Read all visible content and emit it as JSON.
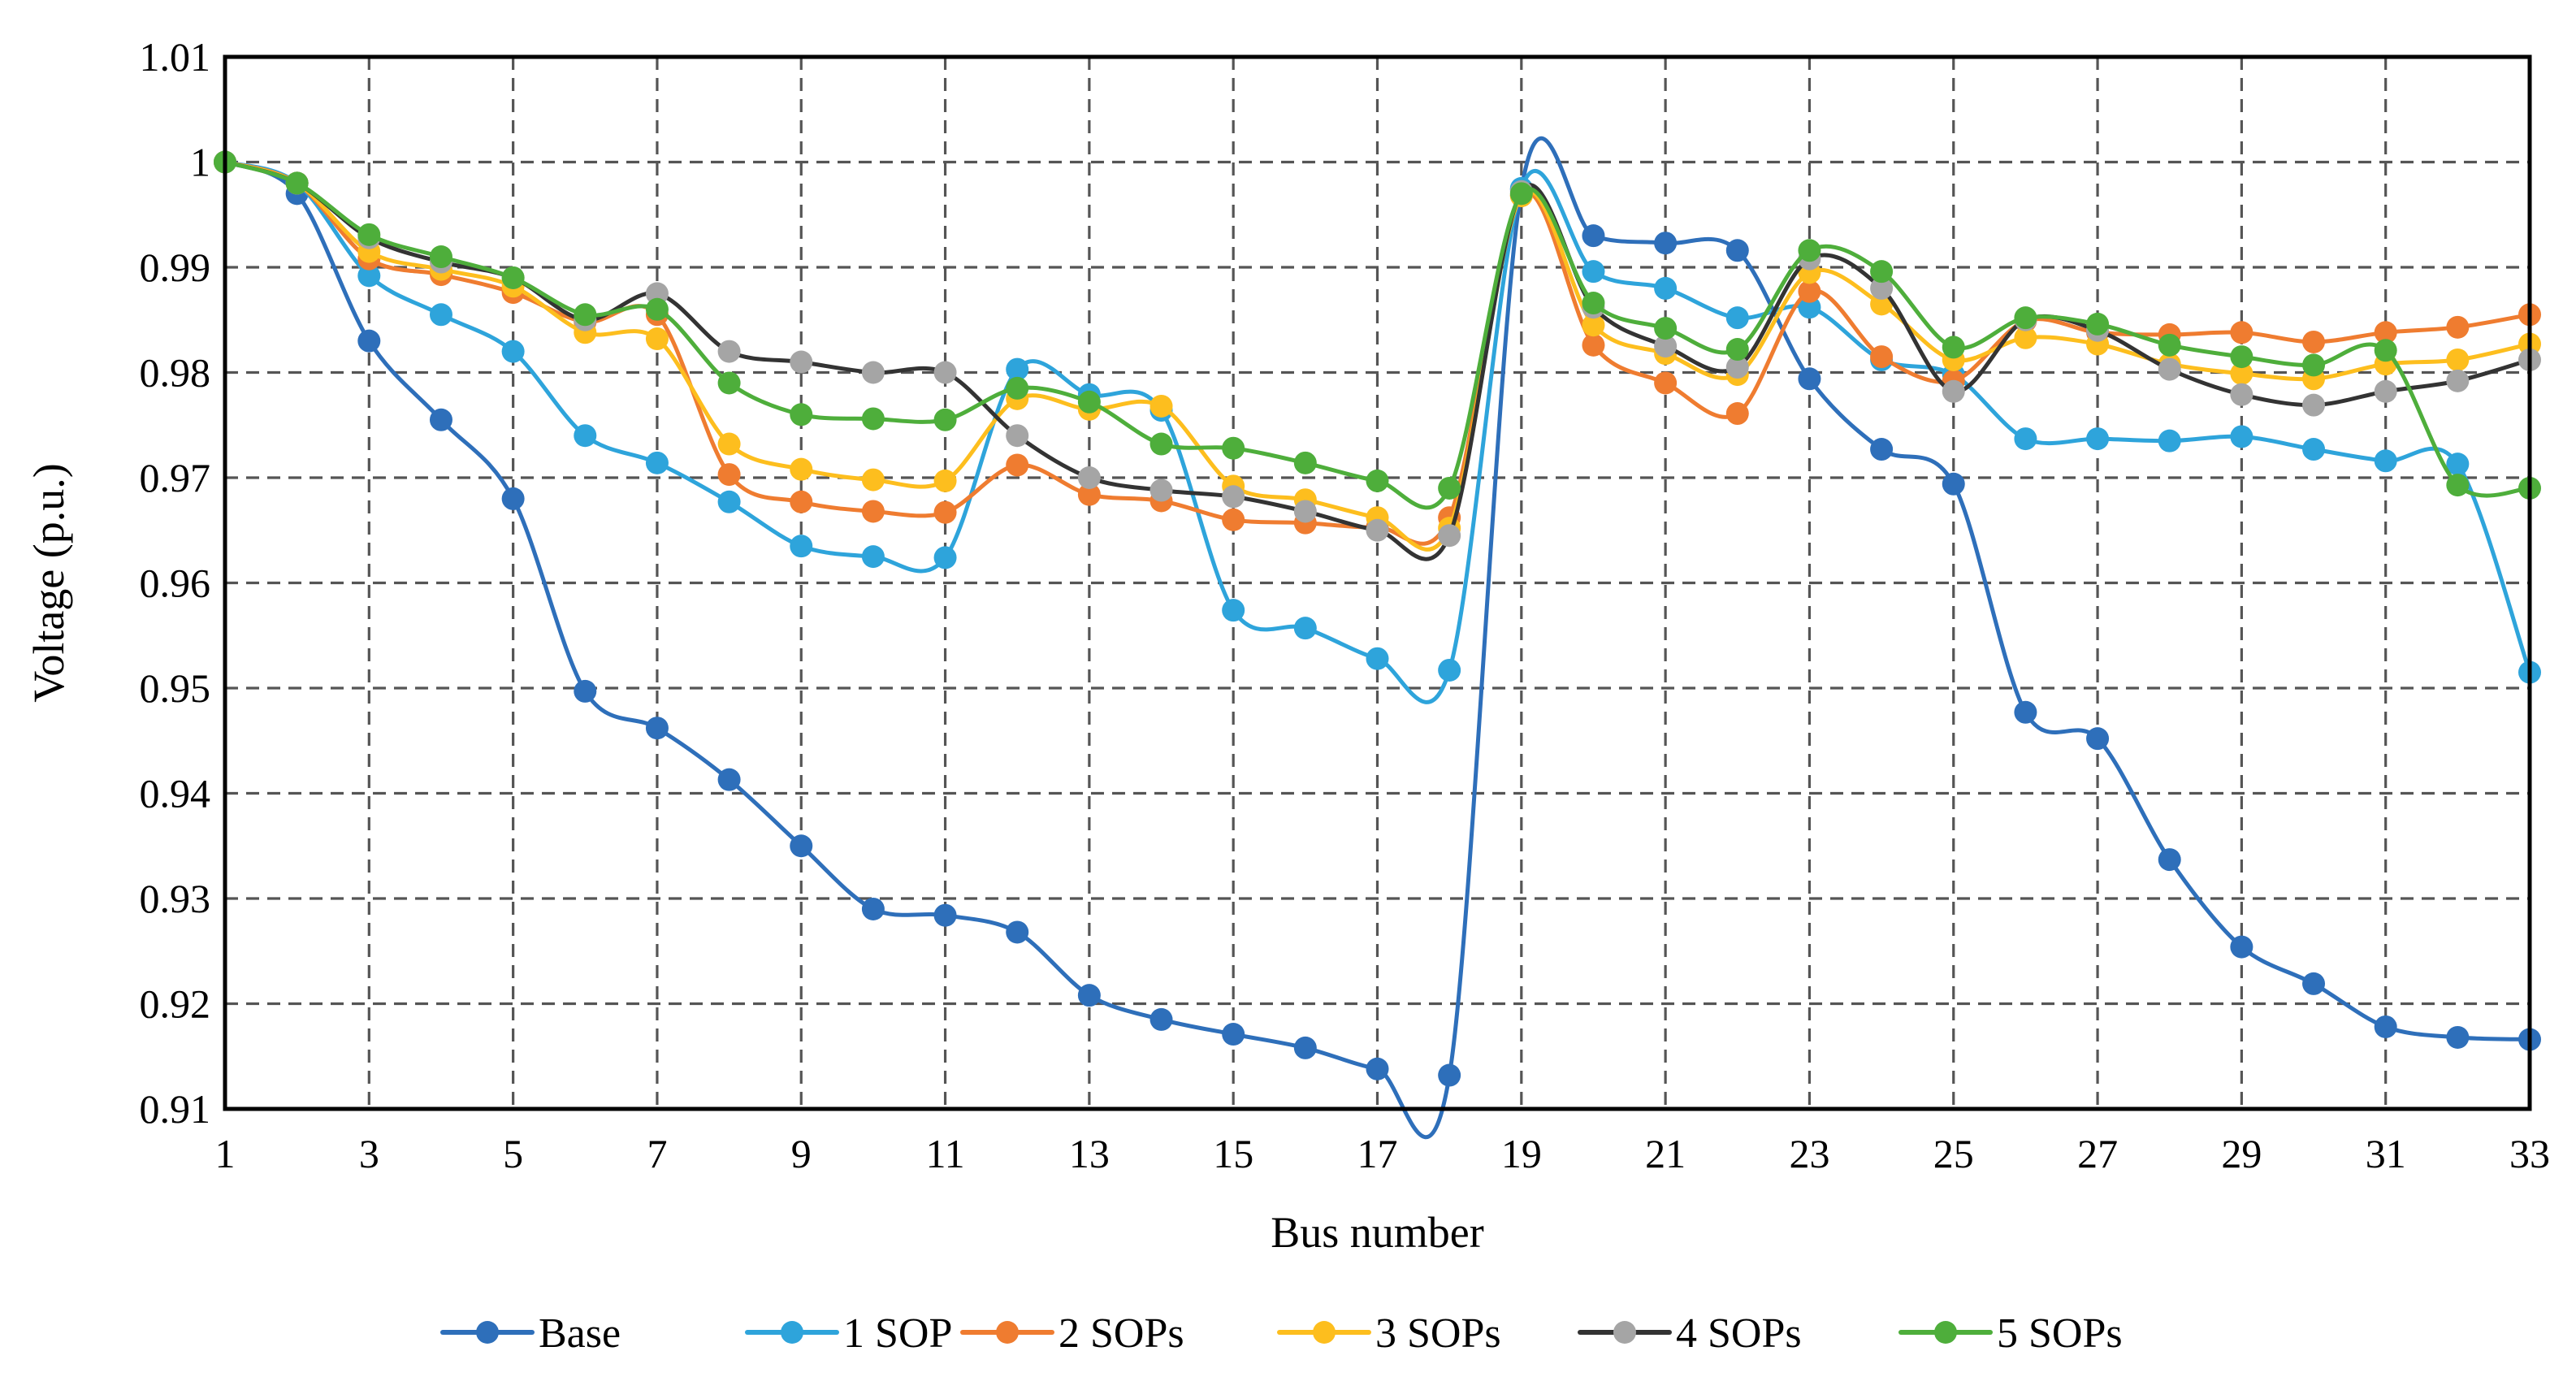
{
  "chart_data": {
    "type": "line",
    "title": "",
    "xlabel": "Bus number",
    "ylabel": "Voltage (p.u.)",
    "x": [
      1,
      2,
      3,
      4,
      5,
      6,
      7,
      8,
      9,
      10,
      11,
      12,
      13,
      14,
      15,
      16,
      17,
      18,
      19,
      20,
      21,
      22,
      23,
      24,
      25,
      26,
      27,
      28,
      29,
      30,
      31,
      32,
      33
    ],
    "xlim": [
      1,
      33
    ],
    "ylim": [
      0.91,
      1.01
    ],
    "xticks": [
      "1",
      "3",
      "5",
      "7",
      "9",
      "11",
      "13",
      "15",
      "17",
      "19",
      "21",
      "23",
      "25",
      "27",
      "29",
      "31",
      "33"
    ],
    "yticks": [
      "0.91",
      "0.92",
      "0.93",
      "0.94",
      "0.95",
      "0.96",
      "0.97",
      "0.98",
      "0.99",
      "1",
      "1.01"
    ],
    "grid": true,
    "legend_position": "bottom",
    "series": [
      {
        "name": "Base",
        "color": "#2E6FBA",
        "values": [
          1.0,
          0.997,
          0.983,
          0.9755,
          0.968,
          0.9497,
          0.9462,
          0.9413,
          0.935,
          0.929,
          0.9284,
          0.9268,
          0.9208,
          0.9185,
          0.9171,
          0.9158,
          0.9138,
          0.9132,
          0.9974,
          0.993,
          0.9923,
          0.9916,
          0.9794,
          0.9727,
          0.9694,
          0.9477,
          0.9452,
          0.9337,
          0.9254,
          0.9219,
          0.9178,
          0.9168,
          0.9166
        ]
      },
      {
        "name": "1 SOP",
        "color": "#2EA4DB",
        "values": [
          1.0,
          0.998,
          0.9892,
          0.9855,
          0.982,
          0.974,
          0.9714,
          0.9677,
          0.9635,
          0.9625,
          0.9624,
          0.9803,
          0.9779,
          0.9764,
          0.9574,
          0.9557,
          0.9528,
          0.9517,
          0.9975,
          0.9896,
          0.988,
          0.9852,
          0.9862,
          0.9812,
          0.9798,
          0.9737,
          0.9737,
          0.9735,
          0.9739,
          0.9727,
          0.9716,
          0.9713,
          0.9515
        ]
      },
      {
        "name": "2 SOPs",
        "color": "#EF7C30",
        "values": [
          1.0,
          0.998,
          0.9908,
          0.9893,
          0.9876,
          0.9848,
          0.9855,
          0.9703,
          0.9677,
          0.9668,
          0.9667,
          0.9712,
          0.9684,
          0.9678,
          0.966,
          0.9657,
          0.9653,
          0.9662,
          0.9968,
          0.9826,
          0.979,
          0.9761,
          0.9877,
          0.9815,
          0.9792,
          0.9849,
          0.9838,
          0.9836,
          0.9838,
          0.9829,
          0.9838,
          0.9843,
          0.9855
        ]
      },
      {
        "name": "3 SOPs",
        "color": "#FDBE1E",
        "values": [
          1.0,
          0.998,
          0.9915,
          0.9898,
          0.9882,
          0.9838,
          0.9832,
          0.9732,
          0.9708,
          0.9698,
          0.9697,
          0.9775,
          0.9765,
          0.9768,
          0.9692,
          0.9679,
          0.9662,
          0.9652,
          0.9968,
          0.9845,
          0.9818,
          0.9798,
          0.9895,
          0.9865,
          0.9812,
          0.9833,
          0.9827,
          0.9808,
          0.9799,
          0.9794,
          0.9808,
          0.9812,
          0.9827
        ]
      },
      {
        "name": "4 SOPs",
        "color": "#A5A5A5",
        "line_color": "#333333",
        "values": [
          1.0,
          0.998,
          0.9928,
          0.9905,
          0.989,
          0.985,
          0.9875,
          0.982,
          0.981,
          0.98,
          0.98,
          0.974,
          0.97,
          0.9688,
          0.9682,
          0.9668,
          0.965,
          0.9645,
          0.9972,
          0.9862,
          0.9825,
          0.9805,
          0.9908,
          0.988,
          0.9782,
          0.985,
          0.984,
          0.9803,
          0.9779,
          0.9769,
          0.9782,
          0.9792,
          0.9812
        ]
      },
      {
        "name": "5 SOPs",
        "color": "#4EAE3B",
        "values": [
          1.0,
          0.998,
          0.9931,
          0.991,
          0.989,
          0.9855,
          0.986,
          0.979,
          0.976,
          0.9756,
          0.9755,
          0.9785,
          0.9772,
          0.9732,
          0.9728,
          0.9714,
          0.9697,
          0.969,
          0.997,
          0.9866,
          0.9842,
          0.9822,
          0.9916,
          0.9896,
          0.9824,
          0.9852,
          0.9846,
          0.9826,
          0.9815,
          0.9807,
          0.9821,
          0.9693,
          0.969
        ]
      }
    ]
  }
}
